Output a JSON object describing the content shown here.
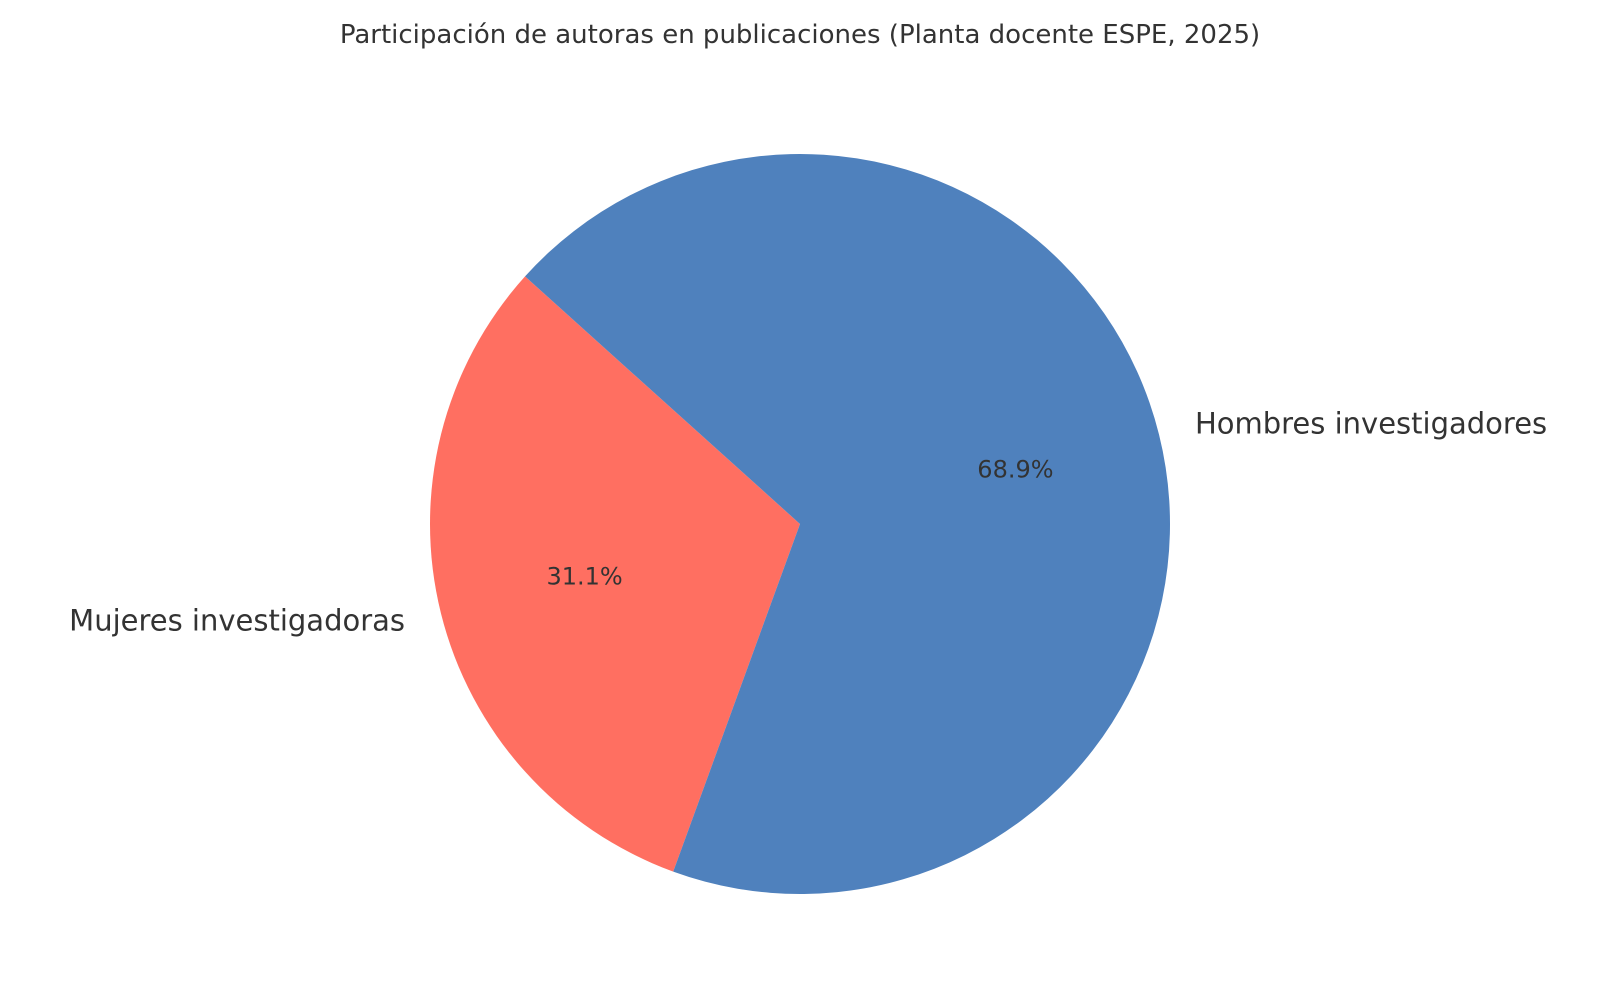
{
  "chart_data": {
    "type": "pie",
    "title": "Participación de autoras en publicaciones (Planta docente ESPE, 2025)",
    "start_angle_deg": 138,
    "direction": "counterclockwise",
    "slices": [
      {
        "label": "Mujeres investigadoras",
        "value": 31.1,
        "pct_label": "31.1%",
        "color": "#FF6F61"
      },
      {
        "label": "Hombres investigadores",
        "value": 68.9,
        "pct_label": "68.9%",
        "color": "#4F81BD"
      }
    ]
  }
}
